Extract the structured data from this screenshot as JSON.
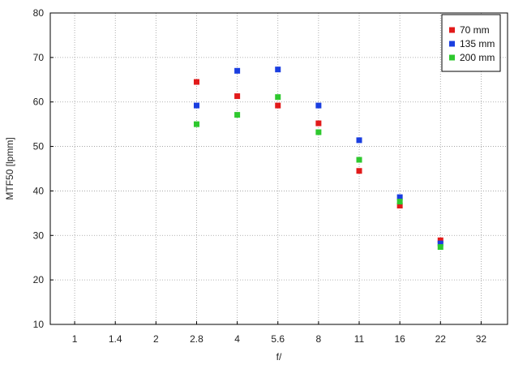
{
  "chart_data": {
    "type": "scatter",
    "xlabel": "f/",
    "ylabel": "MTF50 [lpmm]",
    "x_ticks": [
      "1",
      "1.4",
      "2",
      "2.8",
      "4",
      "5.6",
      "8",
      "11",
      "16",
      "22",
      "32"
    ],
    "ylim": [
      10,
      80
    ],
    "y_ticks": [
      10,
      20,
      30,
      40,
      50,
      60,
      70,
      80
    ],
    "grid": true,
    "legend_position": "top-right",
    "series": [
      {
        "name": "70 mm",
        "color": "#e21a1a",
        "points": [
          {
            "x": "2.8",
            "y": 64.5
          },
          {
            "x": "4",
            "y": 61.3
          },
          {
            "x": "5.6",
            "y": 59.2
          },
          {
            "x": "8",
            "y": 55.2
          },
          {
            "x": "11",
            "y": 44.5
          },
          {
            "x": "16",
            "y": 36.7
          },
          {
            "x": "22",
            "y": 28.9
          }
        ]
      },
      {
        "name": "135 mm",
        "color": "#1a3ee0",
        "points": [
          {
            "x": "2.8",
            "y": 59.2
          },
          {
            "x": "4",
            "y": 67.0
          },
          {
            "x": "5.6",
            "y": 67.3
          },
          {
            "x": "8",
            "y": 59.2
          },
          {
            "x": "11",
            "y": 51.4
          },
          {
            "x": "16",
            "y": 38.6
          },
          {
            "x": "22",
            "y": 28.2
          }
        ]
      },
      {
        "name": "200 mm",
        "color": "#2ec82e",
        "points": [
          {
            "x": "2.8",
            "y": 55.0
          },
          {
            "x": "4",
            "y": 57.1
          },
          {
            "x": "5.6",
            "y": 61.1
          },
          {
            "x": "8",
            "y": 53.2
          },
          {
            "x": "11",
            "y": 47.0
          },
          {
            "x": "16",
            "y": 37.6
          },
          {
            "x": "22",
            "y": 27.4
          }
        ]
      }
    ]
  }
}
